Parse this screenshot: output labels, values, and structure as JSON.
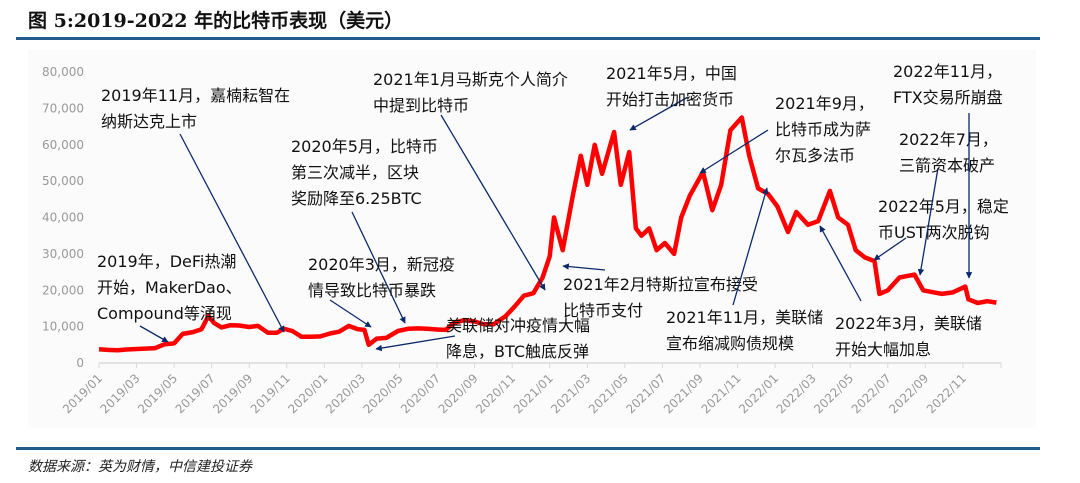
{
  "title": "图 5:2019-2022 年的比特币表现（美元）",
  "source": "数据来源：英为财情，中信建投证券",
  "colors": {
    "line": "#ff0000",
    "arrow": "#0b2a6b",
    "rule": "#1f5c8b"
  },
  "chart_data": {
    "type": "line",
    "title": "",
    "xlabel": "",
    "ylabel": "",
    "ylim": [
      0,
      80000
    ],
    "yticks": [
      "0",
      "10,000",
      "20,000",
      "30,000",
      "40,000",
      "50,000",
      "60,000",
      "70,000",
      "80,000"
    ],
    "xticks": [
      "2019/01",
      "2019/03",
      "2019/05",
      "2019/07",
      "2019/09",
      "2019/11",
      "2020/01",
      "2020/03",
      "2020/05",
      "2020/07",
      "2020/09",
      "2020/11",
      "2021/01",
      "2021/03",
      "2021/05",
      "2021/07",
      "2021/09",
      "2021/11",
      "2022/01",
      "2022/03",
      "2022/05",
      "2022/07",
      "2022/09",
      "2022/11"
    ],
    "grid": false,
    "series": [
      {
        "x": [
          "2019-01-01",
          "2019-01-15",
          "2019-02-01",
          "2019-02-15",
          "2019-03-01",
          "2019-03-15",
          "2019-04-01",
          "2019-04-15",
          "2019-05-01",
          "2019-05-15",
          "2019-06-01",
          "2019-06-15",
          "2019-06-26",
          "2019-07-05",
          "2019-07-17",
          "2019-08-01",
          "2019-08-15",
          "2019-09-01",
          "2019-09-15",
          "2019-10-01",
          "2019-10-15",
          "2019-10-27",
          "2019-11-10",
          "2019-11-25",
          "2019-12-10",
          "2019-12-25",
          "2020-01-10",
          "2020-01-25",
          "2020-02-10",
          "2020-02-25",
          "2020-03-05",
          "2020-03-12",
          "2020-03-25",
          "2020-04-10",
          "2020-04-29",
          "2020-05-15",
          "2020-06-01",
          "2020-06-15",
          "2020-07-01",
          "2020-07-15",
          "2020-07-28",
          "2020-08-15",
          "2020-09-01",
          "2020-09-15",
          "2020-10-01",
          "2020-10-21",
          "2020-11-05",
          "2020-11-20",
          "2020-12-05",
          "2020-12-20",
          "2021-01-01",
          "2021-01-08",
          "2021-01-22",
          "2021-02-08",
          "2021-02-21",
          "2021-03-01",
          "2021-03-13",
          "2021-03-25",
          "2021-04-14",
          "2021-04-25",
          "2021-05-08",
          "2021-05-19",
          "2021-05-28",
          "2021-06-10",
          "2021-06-22",
          "2021-07-05",
          "2021-07-20",
          "2021-08-01",
          "2021-08-15",
          "2021-09-06",
          "2021-09-21",
          "2021-10-05",
          "2021-10-20",
          "2021-11-08",
          "2021-11-20",
          "2021-12-04",
          "2021-12-20",
          "2022-01-05",
          "2022-01-22",
          "2022-02-05",
          "2022-02-24",
          "2022-03-10",
          "2022-03-29",
          "2022-04-12",
          "2022-04-28",
          "2022-05-10",
          "2022-05-25",
          "2022-06-10",
          "2022-06-18",
          "2022-07-01",
          "2022-07-20",
          "2022-08-14",
          "2022-08-28",
          "2022-09-12",
          "2022-09-28",
          "2022-10-15",
          "2022-11-05",
          "2022-11-10",
          "2022-11-25",
          "2022-12-10",
          "2022-12-25"
        ],
        "values": [
          3800,
          3600,
          3500,
          3700,
          3850,
          3950,
          4100,
          5100,
          5400,
          8000,
          8500,
          9300,
          12900,
          11000,
          9800,
          10400,
          10300,
          9900,
          10200,
          8300,
          8300,
          9400,
          8800,
          7200,
          7200,
          7300,
          8100,
          8600,
          10200,
          9300,
          9100,
          5000,
          6700,
          6900,
          8800,
          9400,
          9500,
          9400,
          9200,
          9100,
          11000,
          11800,
          11400,
          10700,
          10600,
          12900,
          15500,
          18500,
          19200,
          23500,
          29300,
          40000,
          31000,
          46000,
          57000,
          49000,
          60000,
          52000,
          63500,
          49000,
          58000,
          37000,
          35000,
          37000,
          31000,
          33000,
          30000,
          40000,
          46000,
          52500,
          42000,
          49000,
          64000,
          67500,
          57000,
          48000,
          46500,
          43000,
          36000,
          41500,
          38000,
          39000,
          47300,
          40000,
          38000,
          31000,
          29000,
          28000,
          19000,
          20000,
          23500,
          24300,
          20000,
          19500,
          19000,
          19400,
          21000,
          17500,
          16500,
          17000,
          16600
        ]
      }
    ]
  },
  "annotations": [
    {
      "lines": [
        "2019年，DeFi热潮",
        "开始，MakerDao、",
        "Compound等涌现"
      ]
    },
    {
      "lines": [
        "2019年11月，嘉楠耘智在",
        "纳斯达克上市"
      ]
    },
    {
      "lines": [
        "2020年5月，比特币",
        "第三次减半，区块",
        "奖励降至6.25BTC"
      ]
    },
    {
      "lines": [
        "2020年3月，新冠疫",
        "情导致比特币暴跌"
      ]
    },
    {
      "lines": [
        "美联储对冲疫情大幅",
        "降息，BTC触底反弹"
      ]
    },
    {
      "lines": [
        "2021年1月马斯克个人简介",
        "中提到比特币"
      ]
    },
    {
      "lines": [
        "2021年5月，中国",
        "开始打击加密货币"
      ]
    },
    {
      "lines": [
        "2021年9月，",
        "比特币成为萨",
        "尔瓦多法币"
      ]
    },
    {
      "lines": [
        "2021年2月特斯拉宣布接受",
        "比特币支付"
      ]
    },
    {
      "lines": [
        "2021年11月，美联储",
        "宣布缩减购债规模"
      ]
    },
    {
      "lines": [
        "2022年3月，美联储",
        "开始大幅加息"
      ]
    },
    {
      "lines": [
        "2022年5月，稳定",
        "币UST两次脱钩"
      ]
    },
    {
      "lines": [
        "2022年7月，",
        "三箭资本破产"
      ]
    },
    {
      "lines": [
        "2022年11月，",
        "FTX交易所崩盘"
      ]
    }
  ]
}
